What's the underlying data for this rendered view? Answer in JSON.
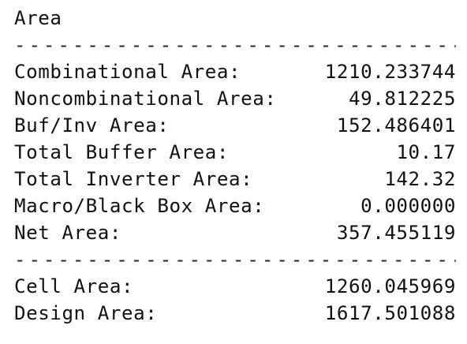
{
  "report": {
    "title": "Area",
    "divider": "-------------------------------------",
    "rows": [
      {
        "label": "Combinational Area:",
        "value": "1210.233744"
      },
      {
        "label": "Noncombinational Area:",
        "value": "49.812225"
      },
      {
        "label": "Buf/Inv Area:",
        "value": "152.486401"
      },
      {
        "label": "Total Buffer Area:",
        "value": "10.17"
      },
      {
        "label": "Total Inverter Area:",
        "value": "142.32"
      },
      {
        "label": "Macro/Black Box Area:",
        "value": "0.000000"
      },
      {
        "label": "Net Area:",
        "value": "357.455119"
      }
    ],
    "totals": [
      {
        "label": "Cell Area:",
        "value": "1260.045969"
      },
      {
        "label": "Design Area:",
        "value": "1617.501088"
      }
    ]
  }
}
